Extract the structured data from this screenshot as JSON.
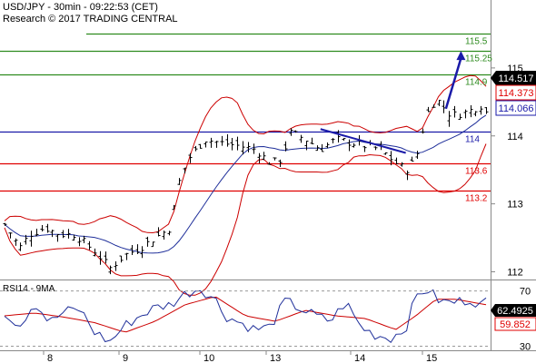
{
  "header": {
    "title": "USD/JPY - 30min - 09:22:53 (CET)",
    "copyright": "Research © 2017 TRADING CENTRAL"
  },
  "colors": {
    "price": "#000000",
    "bollinger": "#cc0000",
    "moving_average": "#1f2f9a",
    "support": "#e00000",
    "resistance": "#2e8b1f",
    "pivot": "#1a1aa8",
    "arrow": "#1a1aa8",
    "rsi": "#1f2f9a",
    "rsi_ma": "#cc0000",
    "tag_last": "#000000",
    "tag_red": "#e00000",
    "tag_blue": "#1a1aa8"
  },
  "chart_data": [
    {
      "type": "line",
      "subtype": "ohlc-bars",
      "title": "USD/JPY - 30min - 09:22:53 (CET)",
      "xlabel": "",
      "ylabel": "",
      "x_ticks": [
        "8",
        "9",
        "10",
        "13",
        "14",
        "15"
      ],
      "y_ticks": [
        112,
        113,
        114,
        115
      ],
      "ylim": [
        111.9,
        116.0
      ],
      "n_bars": 92,
      "price_path": [
        [
          0,
          112.7
        ],
        [
          3,
          112.35
        ],
        [
          5,
          112.55
        ],
        [
          8,
          112.65
        ],
        [
          11,
          112.55
        ],
        [
          14,
          112.55
        ],
        [
          18,
          112.3
        ],
        [
          21,
          112.05
        ],
        [
          24,
          112.25
        ],
        [
          27,
          112.35
        ],
        [
          30,
          112.5
        ],
        [
          33,
          112.65
        ],
        [
          35,
          113.4
        ],
        [
          37,
          113.7
        ],
        [
          40,
          113.95
        ],
        [
          43,
          113.9
        ],
        [
          47,
          113.85
        ],
        [
          50,
          113.8
        ],
        [
          53,
          113.6
        ],
        [
          55,
          113.65
        ],
        [
          57,
          114.05
        ],
        [
          60,
          113.95
        ],
        [
          63,
          113.8
        ],
        [
          66,
          113.95
        ],
        [
          69,
          113.9
        ],
        [
          72,
          113.85
        ],
        [
          75,
          113.8
        ],
        [
          78,
          113.6
        ],
        [
          80,
          113.5
        ],
        [
          82,
          113.65
        ],
        [
          84,
          114.3
        ],
        [
          86,
          114.55
        ],
        [
          89,
          114.3
        ],
        [
          92,
          114.35
        ],
        [
          95,
          114.45
        ],
        [
          96,
          114.35
        ]
      ],
      "last_price": "114.517",
      "price_tags": [
        {
          "label": "114.517",
          "value": 114.517,
          "style": "last"
        },
        {
          "label": "114.373",
          "value": 114.373,
          "style": "red"
        },
        {
          "label": "114.066",
          "value": 114.066,
          "style": "blue"
        }
      ],
      "levels": [
        {
          "label": "115.5",
          "value": 115.5,
          "kind": "resistance"
        },
        {
          "label": "115.25",
          "value": 115.25,
          "kind": "resistance"
        },
        {
          "label": "114.9",
          "value": 114.9,
          "kind": "resistance"
        },
        {
          "label": "114",
          "value": 114.066,
          "kind": "pivot"
        },
        {
          "label": "113.6",
          "value": 113.6,
          "kind": "support"
        },
        {
          "label": "113.2",
          "value": 113.2,
          "kind": "support"
        }
      ],
      "series": [
        {
          "role": "price",
          "kind": "ohlc"
        },
        {
          "role": "moving_average",
          "kind": "line"
        },
        {
          "role": "bollinger_upper",
          "kind": "line"
        },
        {
          "role": "bollinger_lower",
          "kind": "line"
        }
      ],
      "trendline": {
        "from": [
          63,
          114.1
        ],
        "to": [
          80,
          113.75
        ]
      },
      "forecast_arrow": {
        "from": [
          88,
          114.4
        ],
        "to": [
          91,
          115.25
        ]
      },
      "grid": false
    },
    {
      "type": "line",
      "title": "RSI14 - 9MA",
      "y_ticks": [
        30,
        70
      ],
      "ylim": [
        27,
        77
      ],
      "rsi_path": [
        [
          0,
          55
        ],
        [
          3,
          45
        ],
        [
          6,
          62
        ],
        [
          9,
          47
        ],
        [
          12,
          55
        ],
        [
          15,
          57
        ],
        [
          18,
          40
        ],
        [
          21,
          33
        ],
        [
          24,
          45
        ],
        [
          27,
          52
        ],
        [
          30,
          58
        ],
        [
          33,
          60
        ],
        [
          36,
          68
        ],
        [
          39,
          72
        ],
        [
          42,
          64
        ],
        [
          44,
          52
        ],
        [
          47,
          47
        ],
        [
          50,
          42
        ],
        [
          53,
          44
        ],
        [
          56,
          63
        ],
        [
          59,
          57
        ],
        [
          62,
          52
        ],
        [
          65,
          48
        ],
        [
          68,
          62
        ],
        [
          71,
          44
        ],
        [
          74,
          38
        ],
        [
          77,
          36
        ],
        [
          80,
          43
        ],
        [
          82,
          66
        ],
        [
          84,
          72
        ],
        [
          87,
          62
        ],
        [
          90,
          62
        ],
        [
          93,
          64
        ],
        [
          95,
          60
        ],
        [
          96,
          62
        ]
      ],
      "ma_path": [
        [
          0,
          52
        ],
        [
          6,
          54
        ],
        [
          12,
          51
        ],
        [
          18,
          47
        ],
        [
          24,
          40
        ],
        [
          30,
          48
        ],
        [
          36,
          60
        ],
        [
          42,
          66
        ],
        [
          48,
          52
        ],
        [
          54,
          48
        ],
        [
          60,
          56
        ],
        [
          66,
          52
        ],
        [
          72,
          50
        ],
        [
          78,
          42
        ],
        [
          82,
          52
        ],
        [
          86,
          64
        ],
        [
          90,
          64
        ],
        [
          96,
          60
        ]
      ],
      "value_tags": [
        {
          "label": "62.4925",
          "value": 62.4925,
          "style": "last"
        },
        {
          "label": "59.852",
          "value": 59.852,
          "style": "red"
        }
      ]
    }
  ]
}
